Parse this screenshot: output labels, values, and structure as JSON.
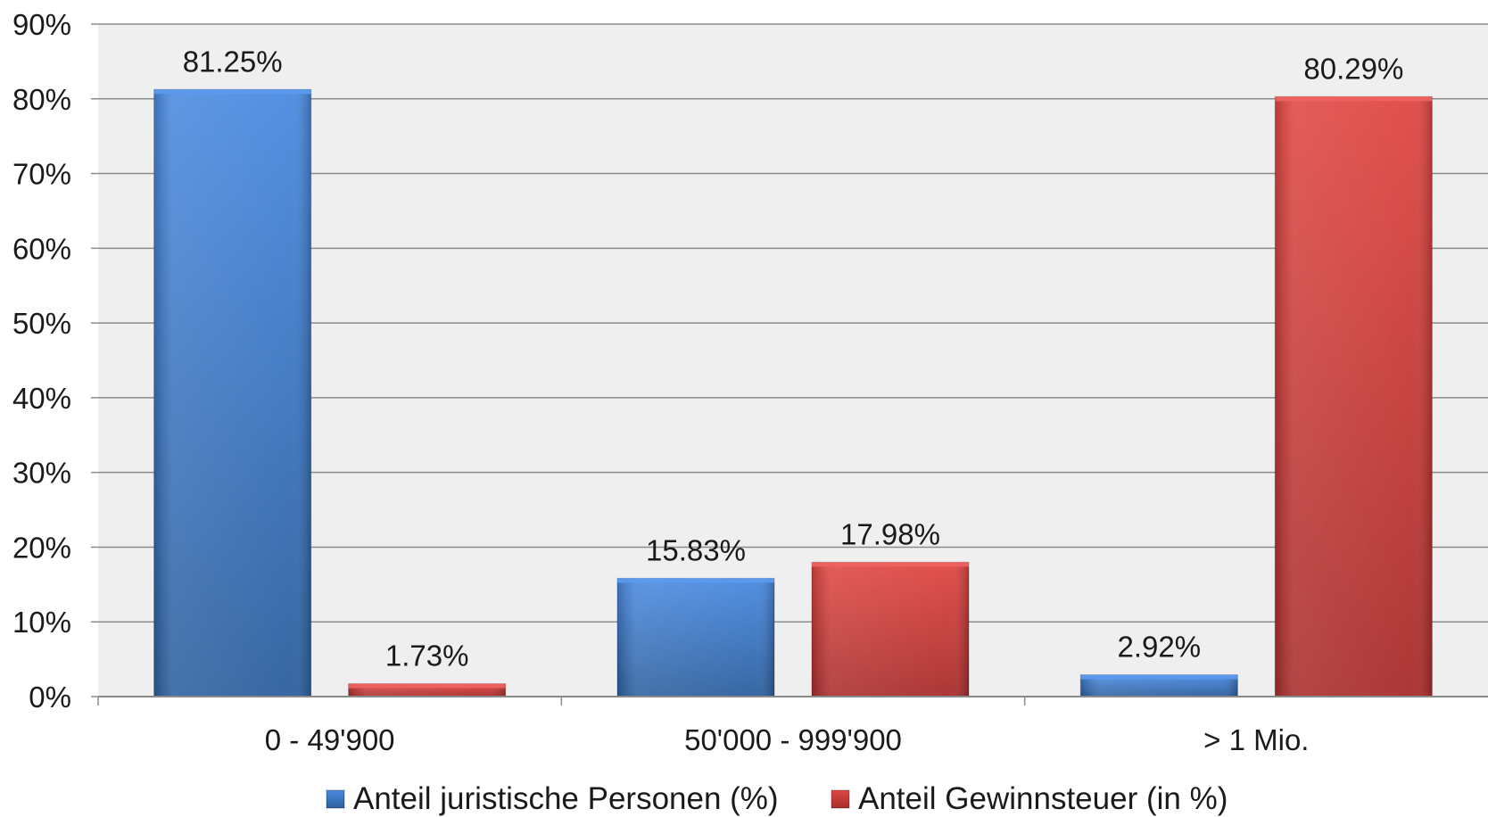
{
  "chart_data": {
    "type": "bar",
    "categories": [
      "0 - 49'900",
      "50'000 - 999'900",
      "> 1 Mio."
    ],
    "series": [
      {
        "name": "Anteil juristische Personen (%)",
        "values": [
          81.25,
          15.83,
          2.92
        ],
        "labels": [
          "81.25%",
          "15.83%",
          "2.92%"
        ],
        "color": "#3f7fd4"
      },
      {
        "name": "Anteil Gewinnsteuer (in %)",
        "values": [
          1.73,
          17.98,
          80.29
        ],
        "labels": [
          "1.73%",
          "17.98%",
          "80.29%"
        ],
        "color": "#d83c3a"
      }
    ],
    "yticks": [
      "0%",
      "10%",
      "20%",
      "30%",
      "40%",
      "50%",
      "60%",
      "70%",
      "80%",
      "90%"
    ],
    "ylim": [
      0,
      90
    ],
    "grid": true,
    "legend_position": "bottom",
    "plot_background": "#efefef"
  }
}
